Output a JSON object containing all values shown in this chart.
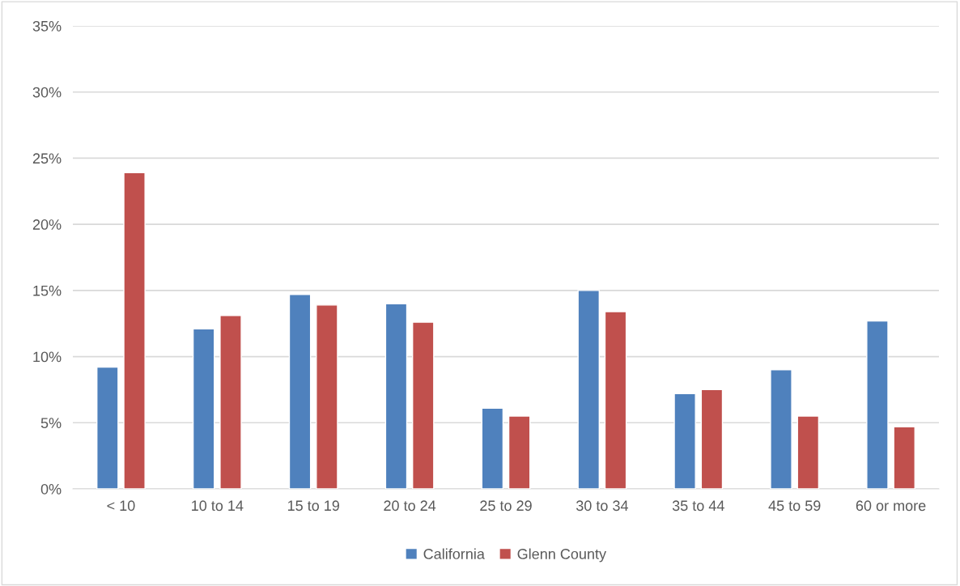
{
  "chart_data": {
    "type": "bar",
    "categories": [
      "< 10",
      "10 to 14",
      "15 to 19",
      "20 to 24",
      "25 to 29",
      "30 to 34",
      "35 to 44",
      "45 to 59",
      "60 or more"
    ],
    "series": [
      {
        "name": "California",
        "color": "#4f81bd",
        "values": [
          9.2,
          12.1,
          14.7,
          14.0,
          6.1,
          15.0,
          7.2,
          9.0,
          12.7
        ]
      },
      {
        "name": "Glenn County",
        "color": "#c0504d",
        "values": [
          23.9,
          13.1,
          13.9,
          12.6,
          5.5,
          13.4,
          7.5,
          5.5,
          4.7
        ]
      }
    ],
    "ylim": [
      0,
      35
    ],
    "yticks": [
      {
        "value": 0,
        "label": "0%"
      },
      {
        "value": 5,
        "label": "5%"
      },
      {
        "value": 10,
        "label": "10%"
      },
      {
        "value": 15,
        "label": "15%"
      },
      {
        "value": 20,
        "label": "20%"
      },
      {
        "value": 25,
        "label": "25%"
      },
      {
        "value": 30,
        "label": "30%"
      },
      {
        "value": 35,
        "label": "35%"
      }
    ],
    "grid": "y",
    "legend": "bottom"
  }
}
